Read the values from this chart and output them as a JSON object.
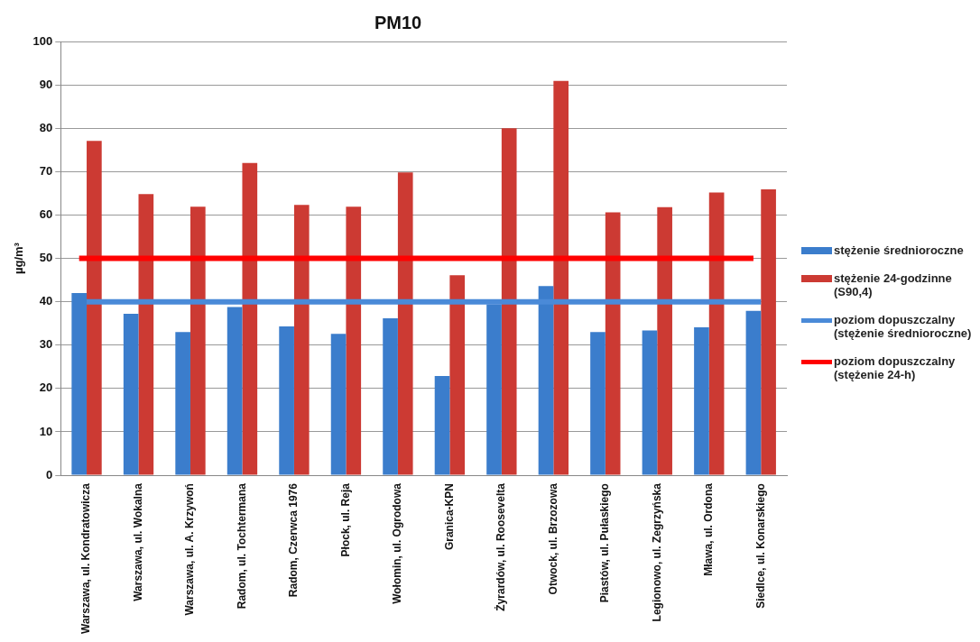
{
  "chart_data": {
    "type": "bar",
    "title": "PM10",
    "ylabel": "µg/m³",
    "categories": [
      "Warszawa, ul. Kondratowicza",
      "Warszawa, ul. Wokalna",
      "Warszawa, ul. A. Krzywoń",
      "Radom, ul. Tochtermana",
      "Radom, Czerwca 1976",
      "Płock, ul. Reja",
      "Wołomin, ul. Ogrodowa",
      "Granica-KPN",
      "Żyrardów, ul. Roosevelta",
      "Otwock, ul. Brzozowa",
      "Piastów, ul. Pułaskiego",
      "Legionowo, ul. Zegrzyńska",
      "Mława, ul. Ordona",
      "Siedlce, ul. Konarskiego"
    ],
    "series": [
      {
        "name": "stężenie średnioroczne",
        "color": "#3b7dcc",
        "values": [
          42,
          37.2,
          33,
          38.8,
          34.3,
          32.6,
          36.2,
          22.9,
          39.4,
          43.6,
          33,
          33.4,
          34.1,
          37.9
        ]
      },
      {
        "name": "stężenie 24-godzinne (S90,4)",
        "color": "#cc3a33",
        "values": [
          77.1,
          64.8,
          61.9,
          72,
          62.3,
          61.9,
          69.8,
          46.1,
          80,
          90.9,
          60.6,
          61.8,
          65.2,
          65.9
        ]
      },
      {
        "name": "poziom dopuszczalny (stężenie średnioroczne)",
        "type": "line",
        "color": "#4a8ad8",
        "values": [
          40,
          40,
          40,
          40,
          40,
          40,
          40,
          40,
          40,
          40,
          40,
          40,
          40,
          40
        ]
      },
      {
        "name": "poziom dopuszczalny (stężenie 24-h)",
        "type": "line",
        "color": "#ff0000",
        "values": [
          50,
          50,
          50,
          50,
          50,
          50,
          50,
          50,
          50,
          50,
          50,
          50,
          50,
          50
        ]
      }
    ],
    "ylim": [
      0,
      100
    ],
    "yticks": [
      0,
      10,
      20,
      30,
      40,
      50,
      60,
      70,
      80,
      90,
      100
    ],
    "grid": "y",
    "legend": "right"
  }
}
